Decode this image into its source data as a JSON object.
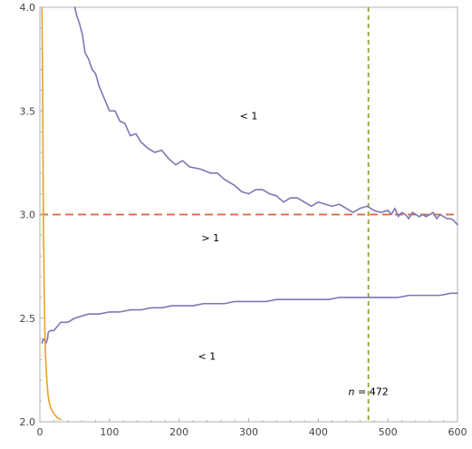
{
  "chart_data": {
    "type": "line",
    "title": "",
    "xlabel": "",
    "ylabel": "",
    "xlim": [
      0,
      600
    ],
    "ylim": [
      2.0,
      4.0
    ],
    "x_ticks": [
      0,
      100,
      200,
      300,
      400,
      500,
      600
    ],
    "y_ticks": [
      2.0,
      2.5,
      3.0,
      3.5,
      4.0
    ],
    "grid": false,
    "colors": {
      "upper_curve": "#7b78b5",
      "lower_curve": "#7b78b5",
      "orange_curve": "#e8a22c",
      "hline": "#e0623a",
      "vline": "#8aa834",
      "frame": "#b0b0b0"
    },
    "series": [
      {
        "key": "upper",
        "points": [
          [
            50,
            4.0
          ],
          [
            53,
            3.96
          ],
          [
            57,
            3.92
          ],
          [
            61,
            3.87
          ],
          [
            65,
            3.78
          ],
          [
            70,
            3.75
          ],
          [
            75,
            3.7
          ],
          [
            80,
            3.68
          ],
          [
            85,
            3.62
          ],
          [
            90,
            3.58
          ],
          [
            95,
            3.54
          ],
          [
            100,
            3.5
          ],
          [
            108,
            3.5
          ],
          [
            115,
            3.45
          ],
          [
            122,
            3.44
          ],
          [
            130,
            3.38
          ],
          [
            138,
            3.39
          ],
          [
            145,
            3.35
          ],
          [
            155,
            3.32
          ],
          [
            165,
            3.3
          ],
          [
            175,
            3.31
          ],
          [
            185,
            3.27
          ],
          [
            195,
            3.24
          ],
          [
            205,
            3.26
          ],
          [
            215,
            3.23
          ],
          [
            230,
            3.22
          ],
          [
            245,
            3.2
          ],
          [
            255,
            3.2
          ],
          [
            265,
            3.17
          ],
          [
            280,
            3.14
          ],
          [
            290,
            3.11
          ],
          [
            300,
            3.1
          ],
          [
            310,
            3.12
          ],
          [
            320,
            3.12
          ],
          [
            330,
            3.1
          ],
          [
            340,
            3.09
          ],
          [
            350,
            3.06
          ],
          [
            360,
            3.08
          ],
          [
            370,
            3.08
          ],
          [
            380,
            3.06
          ],
          [
            390,
            3.04
          ],
          [
            400,
            3.06
          ],
          [
            410,
            3.05
          ],
          [
            420,
            3.04
          ],
          [
            430,
            3.05
          ],
          [
            440,
            3.03
          ],
          [
            450,
            3.01
          ],
          [
            460,
            3.03
          ],
          [
            470,
            3.04
          ],
          [
            480,
            3.02
          ],
          [
            490,
            3.01
          ],
          [
            500,
            3.02
          ],
          [
            505,
            3.0
          ],
          [
            510,
            3.03
          ],
          [
            515,
            2.99
          ],
          [
            520,
            3.01
          ],
          [
            525,
            3.0
          ],
          [
            530,
            2.98
          ],
          [
            535,
            3.01
          ],
          [
            540,
            3.0
          ],
          [
            545,
            2.99
          ],
          [
            550,
            3.0
          ],
          [
            555,
            2.99
          ],
          [
            560,
            3.0
          ],
          [
            565,
            3.01
          ],
          [
            570,
            2.98
          ],
          [
            575,
            3.0
          ],
          [
            580,
            2.99
          ],
          [
            585,
            2.98
          ],
          [
            590,
            2.98
          ],
          [
            595,
            2.97
          ],
          [
            600,
            2.95
          ]
        ]
      },
      {
        "key": "lower",
        "points": [
          [
            3,
            2.38
          ],
          [
            5,
            2.4
          ],
          [
            7,
            2.39
          ],
          [
            9,
            2.38
          ],
          [
            11,
            2.4
          ],
          [
            12,
            2.43
          ],
          [
            15,
            2.44
          ],
          [
            20,
            2.44
          ],
          [
            25,
            2.46
          ],
          [
            30,
            2.48
          ],
          [
            40,
            2.48
          ],
          [
            50,
            2.5
          ],
          [
            60,
            2.51
          ],
          [
            70,
            2.52
          ],
          [
            85,
            2.52
          ],
          [
            100,
            2.53
          ],
          [
            115,
            2.53
          ],
          [
            130,
            2.54
          ],
          [
            145,
            2.54
          ],
          [
            160,
            2.55
          ],
          [
            175,
            2.55
          ],
          [
            190,
            2.56
          ],
          [
            205,
            2.56
          ],
          [
            220,
            2.56
          ],
          [
            235,
            2.57
          ],
          [
            250,
            2.57
          ],
          [
            265,
            2.57
          ],
          [
            280,
            2.58
          ],
          [
            295,
            2.58
          ],
          [
            310,
            2.58
          ],
          [
            325,
            2.58
          ],
          [
            340,
            2.59
          ],
          [
            355,
            2.59
          ],
          [
            370,
            2.59
          ],
          [
            385,
            2.59
          ],
          [
            400,
            2.59
          ],
          [
            415,
            2.59
          ],
          [
            430,
            2.6
          ],
          [
            445,
            2.6
          ],
          [
            460,
            2.6
          ],
          [
            472,
            2.6
          ],
          [
            485,
            2.6
          ],
          [
            500,
            2.6
          ],
          [
            515,
            2.6
          ],
          [
            530,
            2.61
          ],
          [
            545,
            2.61
          ],
          [
            560,
            2.61
          ],
          [
            575,
            2.61
          ],
          [
            590,
            2.62
          ],
          [
            600,
            2.62
          ]
        ]
      },
      {
        "key": "orange",
        "points": [
          [
            3,
            4.0
          ],
          [
            4,
            3.6
          ],
          [
            5,
            3.0
          ],
          [
            6,
            2.7
          ],
          [
            7,
            2.48
          ],
          [
            8,
            2.33
          ],
          [
            10,
            2.2
          ],
          [
            12,
            2.12
          ],
          [
            15,
            2.07
          ],
          [
            20,
            2.04
          ],
          [
            25,
            2.02
          ],
          [
            30,
            2.01
          ]
        ]
      }
    ],
    "reference_lines": [
      {
        "key": "hline",
        "orientation": "horizontal",
        "value": 3.0
      },
      {
        "key": "vline",
        "orientation": "vertical",
        "value": 472
      }
    ],
    "annotations": [
      {
        "key": "upper_region",
        "text": "< 1",
        "x": 300,
        "y": 3.46
      },
      {
        "key": "middle_region",
        "text": "> 1",
        "x": 245,
        "y": 2.87
      },
      {
        "key": "lower_region",
        "text": "< 1",
        "x": 240,
        "y": 2.3
      },
      {
        "key": "n_label",
        "prefix": "n",
        "text": " = 472",
        "x": 472,
        "y": 2.13
      }
    ]
  }
}
